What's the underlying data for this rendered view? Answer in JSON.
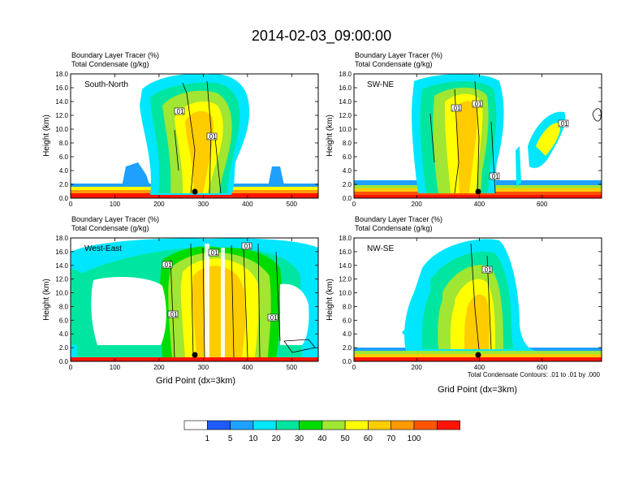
{
  "title": "2014-02-03_09:00:00",
  "panel_labels": {
    "line1": "Boundary Layer Tracer   (%)",
    "line2": "Total Condensate   (g/kg)"
  },
  "contour_note": "Total Condensate Contours: .01 to .01 by .000",
  "xlabel": "Grid Point (dx=3km)",
  "ylabel": "Height (km)",
  "colors": {
    "white": "#ffffff",
    "c1": "#1e5af5",
    "c5": "#1ea0ff",
    "c10": "#00e6ff",
    "c20": "#00e6a0",
    "c30": "#00dc00",
    "c40": "#a0e632",
    "c50": "#ffff00",
    "c60": "#ffcc00",
    "c70": "#ff9900",
    "c80": "#ff5500",
    "c90": "#ff1400"
  },
  "chart_data": [
    {
      "type": "heatmap",
      "name": "South-North",
      "xlim": [
        0,
        560
      ],
      "xticks": [
        0,
        100,
        200,
        300,
        400,
        500
      ],
      "ylim": [
        0,
        18
      ],
      "yticks": [
        "0.0",
        "2.0",
        "4.0",
        "6.0",
        "8.0",
        "10.0",
        "12.0",
        "14.0",
        "16.0",
        "18.0"
      ],
      "marker_x": 280,
      "contour_labels": [
        ".01",
        ".01"
      ]
    },
    {
      "type": "heatmap",
      "name": "SW-NE",
      "xlim": [
        0,
        790
      ],
      "xticks": [
        0,
        200,
        400,
        600
      ],
      "ylim": [
        0,
        18
      ],
      "yticks": [
        "0.0",
        "2.0",
        "4.0",
        "6.0",
        "8.0",
        "10.0",
        "12.0",
        "14.0",
        "16.0",
        "18.0"
      ],
      "marker_x": 395,
      "contour_labels": [
        ".01",
        ".01",
        ".01",
        ".01"
      ]
    },
    {
      "type": "heatmap",
      "name": "West-East",
      "xlim": [
        0,
        560
      ],
      "xticks": [
        0,
        100,
        200,
        300,
        400,
        500
      ],
      "ylim": [
        0,
        18
      ],
      "yticks": [
        "0.0",
        "2.0",
        "4.0",
        "6.0",
        "8.0",
        "10.0",
        "12.0",
        "14.0",
        "16.0",
        "18.0"
      ],
      "marker_x": 280,
      "contour_labels": [
        ".01",
        ".01",
        ".01",
        ".01",
        ".01"
      ]
    },
    {
      "type": "heatmap",
      "name": "NW-SE",
      "xlim": [
        0,
        790
      ],
      "xticks": [
        0,
        200,
        400,
        600
      ],
      "ylim": [
        0,
        18
      ],
      "yticks": [
        "0.0",
        "2.0",
        "4.0",
        "6.0",
        "8.0",
        "10.0",
        "12.0",
        "14.0",
        "16.0",
        "18.0"
      ],
      "marker_x": 395,
      "contour_labels": [
        ".01"
      ]
    }
  ],
  "colorbar": {
    "labels": [
      "1",
      "5",
      "10",
      "20",
      "30",
      "40",
      "50",
      "60",
      "70",
      "100"
    ]
  }
}
